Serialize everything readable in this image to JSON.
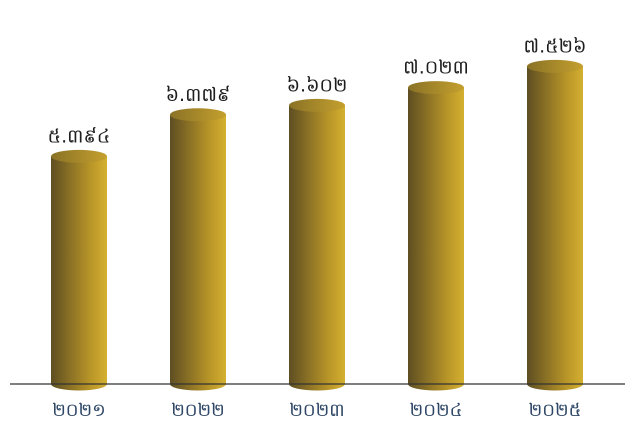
{
  "chart_data": {
    "type": "bar",
    "style": "3d-cylinder",
    "categories": [
      "២០២១",
      "២០២២",
      "២០២៣",
      "២០២៤",
      "២០២៥"
    ],
    "values": [
      5.394,
      6.379,
      6.602,
      7.023,
      7.526
    ],
    "value_labels": [
      "៥.៣៩៤",
      "៦.៣៧៩",
      "៦.៦០២",
      "៧.០២៣",
      "៧.៥២៦"
    ],
    "ylim": [
      0,
      8.15
    ],
    "grid": false,
    "legend": "none",
    "colors": {
      "bar_light": "#c9a42c",
      "bar_dark": "#5e4e22",
      "bar_top": "#a98a2a",
      "axis": "#333333",
      "value_text": "#1e1e1e",
      "category_text": "#2f4766"
    }
  }
}
